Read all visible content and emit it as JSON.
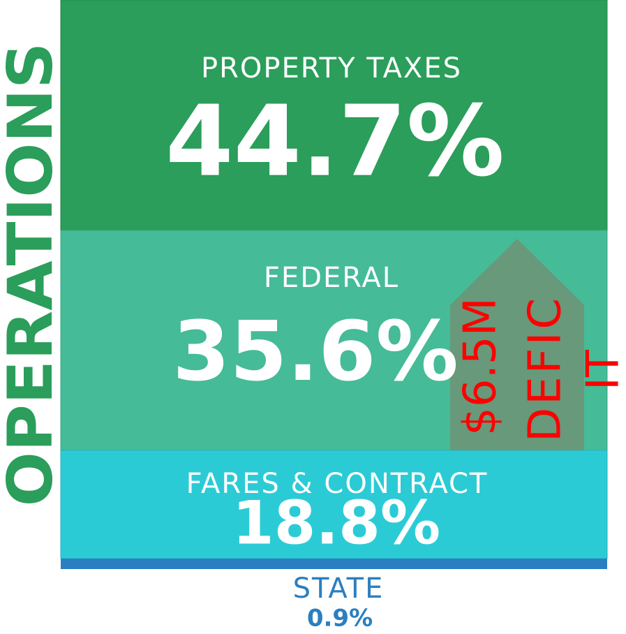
{
  "title": "OPERATIONS",
  "segments": [
    {
      "label": "PROPERTY TAXES",
      "value": "44.7%"
    },
    {
      "label": "FEDERAL",
      "value": "35.6%"
    },
    {
      "label": "FARES & CONTRACT",
      "value": "18.8%"
    },
    {
      "label": "STATE",
      "value": "0.9%"
    }
  ],
  "callout": {
    "lines": [
      "$6.5M",
      "DEFIC",
      "IT"
    ]
  }
}
